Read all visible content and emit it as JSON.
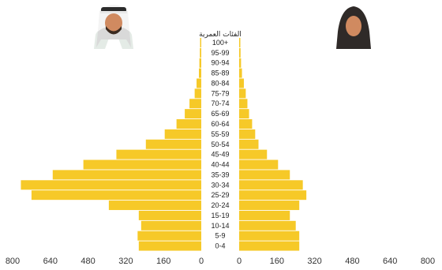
{
  "chart_data": {
    "type": "bar",
    "orientation": "horizontal",
    "layout": "population-pyramid",
    "axis_title": "الفئات العمرية",
    "categories": [
      "0-4",
      "5-9",
      "10-14",
      "15-19",
      "20-24",
      "25-29",
      "30-34",
      "35-39",
      "40-44",
      "45-49",
      "50-54",
      "55-59",
      "60-64",
      "65-69",
      "70-74",
      "75-79",
      "80-84",
      "85-89",
      "90-94",
      "95-99",
      "100+"
    ],
    "series": [
      {
        "name": "",
        "side": "left",
        "color": "#F6C928",
        "icon": "man-icon",
        "values": [
          265,
          270,
          255,
          265,
          392,
          720,
          765,
          630,
          500,
          360,
          235,
          155,
          105,
          70,
          50,
          28,
          20,
          10,
          8,
          6,
          5
        ]
      },
      {
        "name": "",
        "side": "right",
        "color": "#F6C928",
        "icon": "woman-icon",
        "values": [
          255,
          255,
          240,
          215,
          255,
          285,
          270,
          215,
          165,
          118,
          82,
          68,
          55,
          42,
          35,
          28,
          20,
          12,
          8,
          6,
          5
        ]
      }
    ],
    "x_ticks_left": [
      "800",
      "640",
      "480",
      "320",
      "160",
      "0"
    ],
    "x_ticks_right": [
      "0",
      "160",
      "320",
      "480",
      "640",
      "800"
    ],
    "xlim": [
      0,
      800
    ],
    "grid": false,
    "legend": "icons-top"
  }
}
